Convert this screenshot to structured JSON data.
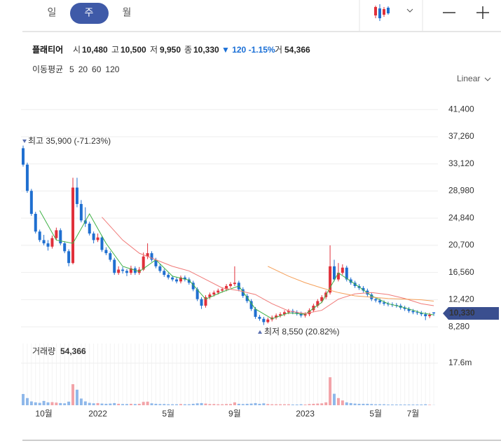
{
  "tabs": [
    "일",
    "주",
    "월"
  ],
  "header": {
    "name": "플래티어",
    "open_label": "시",
    "open": "10,480",
    "high_label": "고",
    "high": "10,500",
    "low_label": "저",
    "low": "9,950",
    "close_label": "종",
    "close": "10,330",
    "change": "▼ 120 -1.15%",
    "volume_label": "거",
    "volume": "54,366"
  },
  "scale_mode": "Linear",
  "chart_data": {
    "type": "candlestick",
    "up_color": "#e0303a",
    "down_color": "#1f6fd0",
    "grid": true,
    "categories": [
      null,
      null,
      null,
      null,
      null,
      "10월",
      null,
      null,
      null,
      null,
      null,
      null,
      null,
      null,
      null,
      null,
      null,
      null,
      "2022",
      null,
      null,
      null,
      null,
      null,
      null,
      null,
      null,
      null,
      null,
      null,
      null,
      null,
      null,
      null,
      null,
      "5월",
      null,
      null,
      null,
      null,
      null,
      null,
      null,
      null,
      null,
      null,
      null,
      null,
      null,
      null,
      null,
      "9월",
      null,
      null,
      null,
      null,
      null,
      null,
      null,
      null,
      null,
      null,
      null,
      null,
      null,
      null,
      null,
      null,
      "2023",
      null,
      null,
      null,
      null,
      null,
      null,
      null,
      null,
      null,
      null,
      null,
      null,
      null,
      null,
      null,
      null,
      "5월",
      null,
      null,
      null,
      null,
      null,
      null,
      null,
      null,
      "7월",
      null,
      null,
      null,
      null,
      null
    ],
    "ohlc": [
      [
        35500,
        35900,
        32700,
        33000
      ],
      [
        33000,
        33300,
        28700,
        29000
      ],
      [
        29000,
        29300,
        25200,
        25500
      ],
      [
        25500,
        25800,
        22500,
        22800
      ],
      [
        22800,
        23100,
        21200,
        21500
      ],
      [
        21500,
        22300,
        20700,
        21000
      ],
      [
        21000,
        21500,
        19900,
        20500
      ],
      [
        20500,
        22200,
        20200,
        21800
      ],
      [
        21800,
        23400,
        21500,
        23000
      ],
      [
        23000,
        23300,
        20700,
        21000
      ],
      [
        21000,
        21300,
        19500,
        19800
      ],
      [
        19800,
        20100,
        17500,
        18000
      ],
      [
        18000,
        31000,
        17800,
        29500
      ],
      [
        29500,
        31000,
        26500,
        27000
      ],
      [
        27000,
        27600,
        24200,
        24500
      ],
      [
        24500,
        26500,
        23500,
        24000
      ],
      [
        24000,
        24300,
        22200,
        22500
      ],
      [
        22500,
        22800,
        21000,
        21500
      ],
      [
        21500,
        22500,
        21200,
        21900
      ],
      [
        21900,
        22200,
        19700,
        20000
      ],
      [
        20000,
        20400,
        19200,
        19500
      ],
      [
        19500,
        19800,
        18200,
        18500
      ],
      [
        18500,
        18800,
        16200,
        16500
      ],
      [
        16500,
        17500,
        16200,
        17000
      ],
      [
        17000,
        17400,
        16400,
        16800
      ],
      [
        16800,
        17100,
        16000,
        16500
      ],
      [
        16500,
        17600,
        16200,
        17200
      ],
      [
        17200,
        17500,
        16200,
        16500
      ],
      [
        16500,
        17400,
        16200,
        17000
      ],
      [
        17000,
        19600,
        16800,
        19000
      ],
      [
        19000,
        21000,
        18600,
        19500
      ],
      [
        19500,
        19800,
        18200,
        18500
      ],
      [
        18500,
        18800,
        17200,
        17500
      ],
      [
        17500,
        17800,
        16500,
        16800
      ],
      [
        16800,
        17100,
        15900,
        16200
      ],
      [
        16200,
        16500,
        15500,
        15800
      ],
      [
        15800,
        16100,
        15200,
        15500
      ],
      [
        15500,
        15800,
        14900,
        15200
      ],
      [
        15200,
        16100,
        14900,
        15800
      ],
      [
        15800,
        16100,
        15200,
        15500
      ],
      [
        15500,
        15800,
        14700,
        15000
      ],
      [
        15000,
        15300,
        13700,
        14000
      ],
      [
        14000,
        14300,
        12200,
        12500
      ],
      [
        12500,
        12800,
        11000,
        11500
      ],
      [
        11500,
        13100,
        11200,
        12800
      ],
      [
        12800,
        13500,
        12500,
        13200
      ],
      [
        13200,
        13800,
        12900,
        13500
      ],
      [
        13500,
        14100,
        13200,
        13800
      ],
      [
        13800,
        14300,
        13500,
        14000
      ],
      [
        14000,
        14800,
        13700,
        14500
      ],
      [
        14500,
        15100,
        14200,
        14800
      ],
      [
        14800,
        17500,
        14500,
        15000
      ],
      [
        15000,
        15300,
        13700,
        14000
      ],
      [
        14000,
        14300,
        12700,
        13000
      ],
      [
        13000,
        13300,
        11900,
        12200
      ],
      [
        12200,
        12500,
        10700,
        11000
      ],
      [
        11000,
        11300,
        9500,
        9800
      ],
      [
        9800,
        10100,
        9200,
        9500
      ],
      [
        9500,
        9800,
        8550,
        9000
      ],
      [
        9000,
        9700,
        8800,
        9400
      ],
      [
        9400,
        10000,
        9100,
        9700
      ],
      [
        9700,
        10300,
        9400,
        10000
      ],
      [
        10000,
        10500,
        9700,
        10200
      ],
      [
        10200,
        10800,
        9900,
        10500
      ],
      [
        10500,
        11000,
        10200,
        10700
      ],
      [
        10700,
        11000,
        10200,
        10500
      ],
      [
        10500,
        10800,
        10000,
        10300
      ],
      [
        10300,
        10600,
        9700,
        10000
      ],
      [
        10000,
        10500,
        9700,
        10200
      ],
      [
        10200,
        11100,
        9900,
        10800
      ],
      [
        10800,
        11800,
        10500,
        11500
      ],
      [
        11500,
        12500,
        11200,
        12200
      ],
      [
        12200,
        13100,
        11900,
        12800
      ],
      [
        12800,
        13800,
        12500,
        13500
      ],
      [
        13500,
        20700,
        13200,
        17500
      ],
      [
        17500,
        18500,
        15200,
        15500
      ],
      [
        15500,
        18000,
        15200,
        16500
      ],
      [
        16500,
        17800,
        16200,
        17300
      ],
      [
        17300,
        17600,
        15200,
        15500
      ],
      [
        15500,
        15800,
        14700,
        15000
      ],
      [
        15000,
        15300,
        14200,
        14500
      ],
      [
        14500,
        14800,
        13900,
        14200
      ],
      [
        14200,
        14500,
        13500,
        13800
      ],
      [
        13800,
        14100,
        12900,
        13200
      ],
      [
        13200,
        13500,
        12200,
        12500
      ],
      [
        12500,
        12800,
        12000,
        12300
      ],
      [
        12300,
        12600,
        11700,
        12000
      ],
      [
        12000,
        12300,
        11500,
        11800
      ],
      [
        11800,
        12100,
        11400,
        11700
      ],
      [
        11700,
        12000,
        11300,
        11600
      ],
      [
        11600,
        11900,
        11200,
        11500
      ],
      [
        11500,
        11800,
        10900,
        11200
      ],
      [
        11200,
        11500,
        10700,
        11000
      ],
      [
        11000,
        11300,
        10400,
        10700
      ],
      [
        10700,
        11000,
        10200,
        10500
      ],
      [
        10500,
        10800,
        10100,
        10400
      ],
      [
        10400,
        10700,
        9900,
        10200
      ],
      [
        10200,
        10500,
        9300,
        9900
      ],
      [
        9900,
        10400,
        9600,
        10100
      ],
      [
        10480,
        10500,
        9950,
        10330
      ]
    ],
    "ylim": [
      6800,
      44200
    ],
    "yticks": [
      {
        "value": 8280,
        "label": "8,280"
      },
      {
        "value": 12420,
        "label": "12,420"
      },
      {
        "value": 16560,
        "label": "16,560"
      },
      {
        "value": 20700,
        "label": "20,700"
      },
      {
        "value": 24840,
        "label": "24,840"
      },
      {
        "value": 28980,
        "label": "28,980"
      },
      {
        "value": 33120,
        "label": "33,120"
      },
      {
        "value": 37260,
        "label": "37,260"
      },
      {
        "value": 41400,
        "label": "41,400"
      }
    ],
    "annotations": [
      "최고 35,900 (-71.23%)",
      "최저 8,550 (20.82%)"
    ],
    "price_tag": "10,330",
    "ma": {
      "title": "이동평균",
      "series": [
        {
          "name": "5",
          "color": "#3cb043",
          "x": [
            4,
            8,
            12,
            16,
            20,
            24,
            28,
            32,
            36,
            40,
            44,
            48,
            52,
            56,
            60,
            64,
            68,
            72,
            76,
            80,
            84,
            88,
            92,
            96,
            99
          ],
          "values": [
            26000,
            21500,
            21000,
            25500,
            21000,
            17500,
            16700,
            18500,
            16000,
            15400,
            12500,
            13600,
            14500,
            11000,
            9500,
            10400,
            10200,
            12000,
            16500,
            14800,
            13000,
            11800,
            11200,
            10400,
            10100
          ]
        },
        {
          "name": "20",
          "color": "#f07a78",
          "x": [
            19,
            24,
            28,
            32,
            36,
            40,
            44,
            48,
            52,
            56,
            60,
            64,
            68,
            72,
            76,
            80,
            84,
            88,
            92,
            96,
            99
          ],
          "values": [
            25000,
            21500,
            19500,
            18500,
            17500,
            16800,
            15500,
            14200,
            13800,
            13200,
            11800,
            10700,
            10300,
            10800,
            12500,
            13300,
            13500,
            13200,
            12600,
            11800,
            11500
          ]
        },
        {
          "name": "60",
          "color": "#f5a05a",
          "x": [
            59,
            64,
            68,
            72,
            76,
            80,
            84,
            88,
            92,
            96,
            99
          ],
          "values": [
            17500,
            16000,
            15000,
            14200,
            13500,
            13000,
            12800,
            12600,
            12500,
            12400,
            12200
          ]
        },
        {
          "name": "120",
          "color": "#9b59d0",
          "x": [],
          "values": []
        }
      ]
    },
    "volume": {
      "title": "거래량",
      "last": "54,366",
      "ylim": [
        0,
        25.8
      ],
      "yticks": [
        {
          "value": 17.6,
          "label": "17.6m"
        }
      ],
      "values": [
        4.7,
        3.0,
        1.6,
        1.2,
        1.0,
        1.8,
        1.2,
        1.3,
        1.1,
        0.9,
        0.8,
        1.5,
        8.8,
        6.5,
        2.8,
        1.6,
        1.0,
        0.8,
        0.9,
        0.7,
        0.6,
        0.7,
        0.9,
        0.6,
        0.5,
        0.5,
        0.6,
        0.5,
        0.6,
        1.4,
        1.5,
        0.8,
        0.6,
        0.5,
        0.5,
        0.4,
        0.4,
        0.4,
        0.5,
        0.4,
        0.4,
        0.6,
        0.8,
        0.9,
        0.7,
        0.5,
        0.5,
        0.4,
        0.4,
        0.5,
        0.5,
        1.2,
        0.6,
        0.5,
        0.6,
        0.7,
        0.9,
        0.6,
        0.8,
        0.5,
        0.4,
        0.4,
        0.4,
        0.4,
        0.4,
        0.3,
        0.3,
        0.4,
        0.3,
        0.5,
        0.6,
        0.7,
        0.8,
        1.2,
        11.7,
        4.8,
        3.0,
        2.0,
        1.2,
        0.9,
        0.7,
        0.6,
        0.6,
        0.6,
        0.5,
        0.4,
        0.4,
        0.4,
        0.3,
        0.3,
        0.3,
        0.3,
        0.3,
        0.3,
        0.3,
        0.3,
        0.3,
        0.4,
        0.2,
        0.054366
      ]
    }
  }
}
